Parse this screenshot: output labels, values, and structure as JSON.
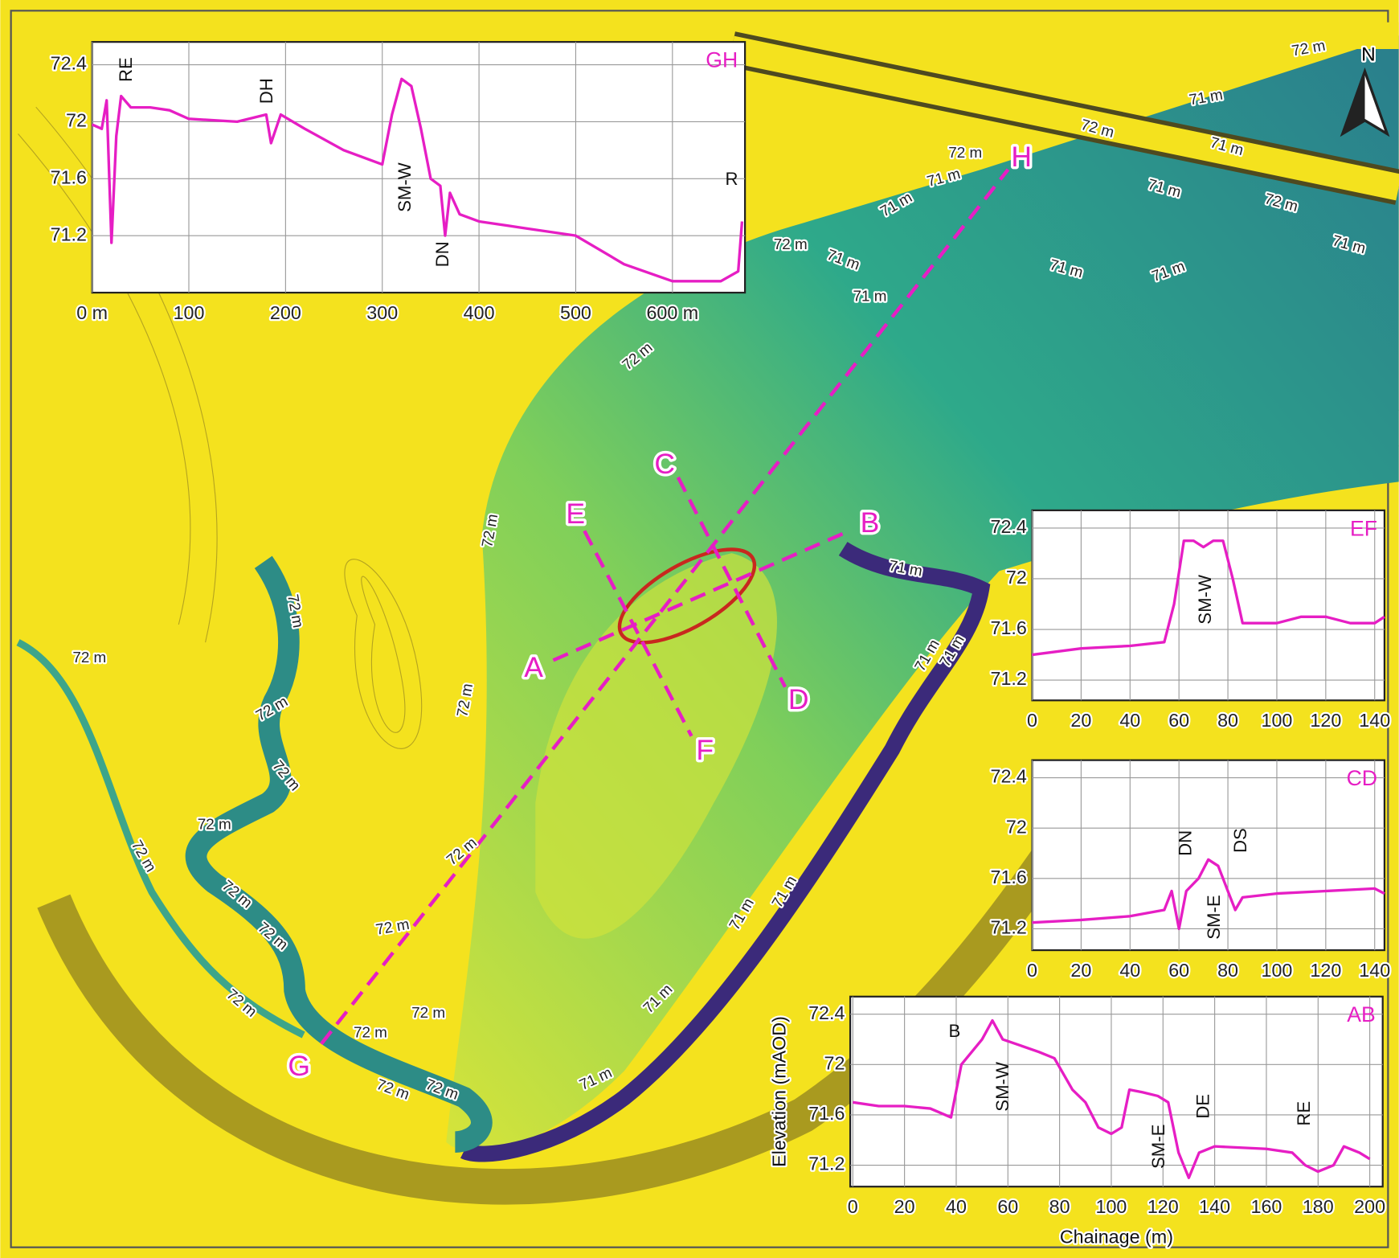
{
  "map": {
    "section_labels": [
      "A",
      "B",
      "C",
      "D",
      "E",
      "F",
      "G",
      "H"
    ],
    "north": "N",
    "contour_labels": [
      "72 m",
      "71 m",
      "72 m",
      "71 m",
      "72 m",
      "71 m",
      "71 m",
      "71 m",
      "72 m",
      "71 m",
      "72 m",
      "71 m",
      "71 m",
      "71 m",
      "71 m",
      "72 m",
      "72 m",
      "71 m",
      "72 m",
      "72 m",
      "72 m",
      "71 m",
      "71 m",
      "72 m",
      "72 m",
      "72 m",
      "72 m",
      "72 m",
      "72 m",
      "72 m",
      "72 m",
      "72 m",
      "72 m",
      "72 m",
      "72 m",
      "72 m",
      "71 m",
      "71 m",
      "71 m",
      "71 m"
    ]
  },
  "chart_data": [
    {
      "type": "line",
      "title": "GH",
      "color": "#e61ec4",
      "x": [
        0,
        10,
        15,
        20,
        25,
        30,
        40,
        60,
        80,
        100,
        150,
        180,
        185,
        195,
        220,
        260,
        300,
        310,
        320,
        330,
        340,
        350,
        360,
        365,
        370,
        380,
        400,
        450,
        500,
        550,
        600,
        650,
        668,
        672
      ],
      "values": [
        71.98,
        71.95,
        72.15,
        71.15,
        71.9,
        72.18,
        72.1,
        72.1,
        72.08,
        72.02,
        72.0,
        72.05,
        71.85,
        72.05,
        71.95,
        71.8,
        71.7,
        72.05,
        72.3,
        72.25,
        71.95,
        71.6,
        71.55,
        71.2,
        71.5,
        71.35,
        71.3,
        71.25,
        71.2,
        71.0,
        70.88,
        70.88,
        70.95,
        71.3
      ],
      "xlim": [
        0,
        675
      ],
      "ylim": [
        70.8,
        72.56
      ],
      "xticks": [
        {
          "value": 0,
          "label": "0 m"
        },
        100,
        200,
        300,
        400,
        500,
        {
          "value": 600,
          "label": "600 m"
        }
      ],
      "yticks": [
        71.2,
        71.6,
        72,
        72.4
      ],
      "annotations": [
        "RE",
        "DH",
        "SM-W",
        "DN",
        "R"
      ],
      "grid": true
    },
    {
      "type": "line",
      "title": "EF",
      "color": "#e61ec4",
      "x": [
        0,
        20,
        40,
        54,
        58,
        62,
        66,
        70,
        74,
        78,
        82,
        86,
        95,
        100,
        110,
        120,
        130,
        140,
        144
      ],
      "values": [
        71.4,
        71.45,
        71.47,
        71.5,
        71.8,
        72.3,
        72.3,
        72.25,
        72.3,
        72.3,
        72.0,
        71.65,
        71.65,
        71.65,
        71.7,
        71.7,
        71.65,
        71.65,
        71.7
      ],
      "xlim": [
        0,
        144
      ],
      "ylim": [
        71.04,
        72.54
      ],
      "xticks": [
        0,
        20,
        40,
        60,
        80,
        100,
        120,
        140
      ],
      "yticks": [
        71.2,
        71.6,
        72,
        72.4
      ],
      "annotations": [
        "SM-W"
      ],
      "grid": true
    },
    {
      "type": "line",
      "title": "CD",
      "color": "#e61ec4",
      "x": [
        0,
        20,
        40,
        54,
        57,
        60,
        63,
        68,
        72,
        76,
        80,
        83,
        86,
        100,
        120,
        140,
        144
      ],
      "values": [
        71.25,
        71.27,
        71.3,
        71.35,
        71.5,
        71.2,
        71.5,
        71.6,
        71.75,
        71.7,
        71.5,
        71.35,
        71.45,
        71.48,
        71.5,
        71.52,
        71.48
      ],
      "xlim": [
        0,
        144
      ],
      "ylim": [
        71.03,
        72.54
      ],
      "xticks": [
        0,
        20,
        40,
        60,
        80,
        100,
        120,
        140
      ],
      "yticks": [
        71.2,
        71.6,
        72,
        72.4
      ],
      "annotations": [
        "DN",
        "DS",
        "SM-E"
      ],
      "grid": true
    },
    {
      "type": "line",
      "title": "AB",
      "color": "#e61ec4",
      "x_label": "Chainage (m)",
      "y_label": "Elevation (mAOD)",
      "x": [
        0,
        10,
        20,
        30,
        38,
        42,
        46,
        50,
        54,
        58,
        65,
        72,
        78,
        85,
        90,
        95,
        100,
        104,
        107,
        112,
        118,
        122,
        126,
        130,
        134,
        140,
        160,
        170,
        175,
        180,
        186,
        190,
        196,
        200
      ],
      "values": [
        71.7,
        71.67,
        71.67,
        71.65,
        71.58,
        72.0,
        72.1,
        72.2,
        72.35,
        72.2,
        72.15,
        72.1,
        72.05,
        71.8,
        71.7,
        71.5,
        71.45,
        71.5,
        71.8,
        71.78,
        71.75,
        71.7,
        71.3,
        71.1,
        71.3,
        71.35,
        71.33,
        71.3,
        71.2,
        71.15,
        71.2,
        71.35,
        71.3,
        71.25
      ],
      "xlim": [
        -1,
        205
      ],
      "ylim": [
        71.03,
        72.54
      ],
      "xticks": [
        0,
        20,
        40,
        60,
        80,
        100,
        120,
        140,
        160,
        180,
        200
      ],
      "yticks": [
        71.2,
        71.6,
        72,
        72.4
      ],
      "annotations": [
        "B",
        "SM-W",
        "SM-E",
        "DE",
        "RE"
      ],
      "grid": true
    }
  ]
}
